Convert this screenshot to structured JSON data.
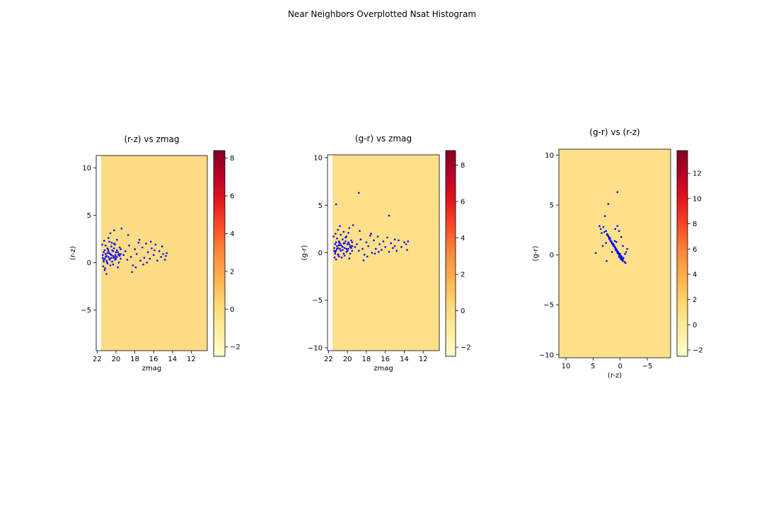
{
  "figure": {
    "suptitle": "Near Neighbors Overplotted Nsat Histogram"
  },
  "colors": {
    "background_field": "#fddc85",
    "background_field_alt": "#fee08b",
    "points": "#0000ff",
    "colormap_stops": [
      "#ffffcc",
      "#ffeda0",
      "#fed976",
      "#feb24c",
      "#fd8d3c",
      "#fc4e2a",
      "#e31a1c",
      "#bd0026",
      "#800026"
    ]
  },
  "chart_data": [
    {
      "type": "scatter",
      "title": "(r-z) vs zmag",
      "xlabel": "zmag",
      "ylabel": "(r-z)",
      "xlim": [
        22.1,
        10.3
      ],
      "ylim": [
        -9.3,
        11.3
      ],
      "x_inverted": true,
      "x_ticks": [
        "22",
        "20",
        "18",
        "16",
        "14",
        "12"
      ],
      "y_ticks": [
        "10",
        "5",
        "0",
        "−5"
      ],
      "colorbar": {
        "ticks": [
          "8",
          "6",
          "4",
          "2",
          "0",
          "−2"
        ],
        "range": [
          -2.5,
          8.4
        ]
      },
      "points": [
        [
          21.4,
          0.8
        ],
        [
          21.3,
          1.1
        ],
        [
          21.2,
          0.4
        ],
        [
          21.1,
          0.9
        ],
        [
          21.0,
          0.2
        ],
        [
          20.9,
          1.5
        ],
        [
          20.8,
          0.6
        ],
        [
          20.7,
          1.0
        ],
        [
          20.6,
          -0.3
        ],
        [
          20.5,
          0.5
        ],
        [
          20.4,
          1.3
        ],
        [
          20.3,
          0.7
        ],
        [
          20.2,
          2.0
        ],
        [
          20.1,
          0.3
        ],
        [
          20.0,
          1.1
        ],
        [
          19.9,
          0.6
        ],
        [
          19.8,
          -0.5
        ],
        [
          19.7,
          0.9
        ],
        [
          19.6,
          1.6
        ],
        [
          19.5,
          0.4
        ],
        [
          21.3,
          0.1
        ],
        [
          21.1,
          1.8
        ],
        [
          20.9,
          -0.1
        ],
        [
          20.7,
          2.2
        ],
        [
          20.5,
          1.7
        ],
        [
          20.3,
          -0.2
        ],
        [
          20.1,
          1.9
        ],
        [
          19.9,
          2.4
        ],
        [
          19.7,
          0.0
        ],
        [
          19.5,
          1.4
        ],
        [
          21.2,
          -0.8
        ],
        [
          21.0,
          -1.2
        ],
        [
          20.8,
          2.6
        ],
        [
          20.6,
          3.1
        ],
        [
          20.2,
          3.4
        ],
        [
          19.4,
          3.6
        ],
        [
          19.2,
          0.8
        ],
        [
          19.0,
          1.2
        ],
        [
          18.8,
          0.3
        ],
        [
          18.6,
          1.8
        ],
        [
          18.4,
          0.6
        ],
        [
          18.2,
          -0.3
        ],
        [
          18.0,
          1.4
        ],
        [
          17.8,
          0.9
        ],
        [
          17.6,
          2.1
        ],
        [
          17.4,
          0.2
        ],
        [
          17.2,
          1.6
        ],
        [
          17.0,
          0.5
        ],
        [
          16.8,
          2.0
        ],
        [
          16.6,
          1.1
        ],
        [
          16.4,
          0.4
        ],
        [
          16.2,
          1.5
        ],
        [
          16.0,
          0.8
        ],
        [
          15.8,
          1.9
        ],
        [
          15.6,
          0.2
        ],
        [
          15.4,
          1.2
        ],
        [
          15.2,
          0.6
        ],
        [
          15.0,
          0.9
        ],
        [
          14.8,
          0.3
        ],
        [
          14.6,
          1.0
        ],
        [
          18.7,
          2.9
        ],
        [
          18.3,
          -1.0
        ],
        [
          17.9,
          -0.5
        ],
        [
          17.5,
          2.4
        ],
        [
          17.1,
          -0.2
        ],
        [
          16.7,
          0.0
        ],
        [
          16.3,
          2.2
        ],
        [
          15.9,
          1.3
        ],
        [
          15.1,
          1.7
        ],
        [
          14.7,
          0.7
        ],
        [
          21.4,
          0.5
        ],
        [
          21.2,
          1.3
        ],
        [
          21.0,
          0.7
        ],
        [
          20.8,
          1.2
        ],
        [
          20.6,
          0.9
        ],
        [
          20.4,
          0.1
        ],
        [
          20.2,
          1.5
        ],
        [
          20.0,
          0.4
        ],
        [
          19.8,
          1.1
        ],
        [
          19.6,
          0.7
        ],
        [
          21.3,
          0.3
        ],
        [
          21.1,
          0.6
        ],
        [
          20.9,
          1.0
        ],
        [
          20.7,
          0.4
        ],
        [
          20.5,
          0.8
        ],
        [
          20.3,
          1.2
        ],
        [
          20.1,
          0.6
        ],
        [
          19.9,
          1.3
        ],
        [
          19.7,
          0.8
        ],
        [
          19.5,
          0.9
        ],
        [
          21.45,
          1.9
        ],
        [
          21.35,
          -0.4
        ],
        [
          21.25,
          2.3
        ],
        [
          21.15,
          -0.6
        ],
        [
          20.95,
          0.0
        ],
        [
          20.85,
          1.4
        ],
        [
          20.65,
          0.3
        ],
        [
          20.45,
          2.1
        ],
        [
          20.25,
          0.5
        ],
        [
          20.05,
          0.8
        ]
      ]
    },
    {
      "type": "scatter",
      "title": "(g-r) vs zmag",
      "xlabel": "zmag",
      "ylabel": "(g-r)",
      "xlim": [
        22.1,
        10.3
      ],
      "ylim": [
        -10.3,
        10.3
      ],
      "x_inverted": true,
      "x_ticks": [
        "22",
        "20",
        "18",
        "16",
        "14",
        "12"
      ],
      "y_ticks": [
        "10",
        "5",
        "0",
        "−5",
        "−10"
      ],
      "colorbar": {
        "ticks": [
          "8",
          "6",
          "4",
          "2",
          "0",
          "−2"
        ],
        "range": [
          -2.5,
          8.8
        ]
      },
      "points": [
        [
          21.4,
          0.5
        ],
        [
          21.3,
          0.9
        ],
        [
          21.2,
          0.2
        ],
        [
          21.1,
          0.7
        ],
        [
          21.0,
          -0.2
        ],
        [
          20.9,
          1.2
        ],
        [
          20.8,
          0.4
        ],
        [
          20.7,
          0.8
        ],
        [
          20.6,
          -0.5
        ],
        [
          20.5,
          0.3
        ],
        [
          20.4,
          1.0
        ],
        [
          20.3,
          0.5
        ],
        [
          20.2,
          1.6
        ],
        [
          20.1,
          0.1
        ],
        [
          20.0,
          0.9
        ],
        [
          19.9,
          0.4
        ],
        [
          19.8,
          -0.6
        ],
        [
          19.7,
          0.7
        ],
        [
          19.6,
          1.3
        ],
        [
          19.5,
          0.2
        ],
        [
          21.3,
          -0.1
        ],
        [
          21.1,
          1.5
        ],
        [
          20.9,
          -0.4
        ],
        [
          20.7,
          1.9
        ],
        [
          20.5,
          1.4
        ],
        [
          20.3,
          -0.3
        ],
        [
          20.1,
          1.7
        ],
        [
          19.9,
          2.1
        ],
        [
          19.7,
          -0.1
        ],
        [
          19.5,
          1.1
        ],
        [
          21.2,
          -0.7
        ],
        [
          21.0,
          2.4
        ],
        [
          20.8,
          2.8
        ],
        [
          20.4,
          2.2
        ],
        [
          19.8,
          2.6
        ],
        [
          21.2,
          5.1
        ],
        [
          19.4,
          2.9
        ],
        [
          19.2,
          0.6
        ],
        [
          19.0,
          0.9
        ],
        [
          18.8,
          0.2
        ],
        [
          18.6,
          1.4
        ],
        [
          18.4,
          0.4
        ],
        [
          18.2,
          -0.2
        ],
        [
          18.0,
          1.1
        ],
        [
          17.8,
          0.7
        ],
        [
          17.6,
          1.8
        ],
        [
          17.4,
          0.0
        ],
        [
          17.2,
          1.3
        ],
        [
          17.0,
          0.4
        ],
        [
          16.8,
          1.7
        ],
        [
          16.6,
          0.9
        ],
        [
          16.4,
          0.3
        ],
        [
          16.2,
          1.2
        ],
        [
          16.0,
          0.6
        ],
        [
          15.8,
          1.6
        ],
        [
          15.6,
          0.1
        ],
        [
          15.4,
          1.0
        ],
        [
          15.2,
          0.5
        ],
        [
          15.0,
          0.7
        ],
        [
          14.8,
          0.2
        ],
        [
          18.7,
          2.3
        ],
        [
          18.3,
          -0.8
        ],
        [
          17.9,
          -0.4
        ],
        [
          17.5,
          2.0
        ],
        [
          17.1,
          -0.1
        ],
        [
          16.7,
          0.1
        ],
        [
          15.6,
          3.9
        ],
        [
          18.8,
          6.3
        ],
        [
          15.0,
          1.4
        ],
        [
          14.6,
          1.3
        ],
        [
          13.8,
          0.9
        ],
        [
          13.7,
          0.3
        ],
        [
          13.6,
          1.2
        ],
        [
          14.3,
          0.6
        ],
        [
          14.0,
          1.1
        ],
        [
          21.4,
          0.2
        ],
        [
          21.2,
          1.1
        ],
        [
          21.0,
          0.5
        ],
        [
          20.8,
          1.0
        ],
        [
          20.6,
          0.7
        ],
        [
          20.4,
          -0.1
        ],
        [
          20.2,
          1.2
        ],
        [
          20.0,
          0.2
        ],
        [
          19.8,
          0.9
        ],
        [
          19.6,
          0.5
        ],
        [
          21.3,
          0.1
        ],
        [
          21.1,
          0.4
        ],
        [
          20.9,
          0.8
        ],
        [
          20.7,
          0.2
        ],
        [
          20.5,
          0.6
        ],
        [
          20.3,
          1.0
        ],
        [
          20.1,
          0.4
        ],
        [
          19.9,
          1.1
        ],
        [
          19.7,
          0.6
        ],
        [
          19.5,
          0.7
        ],
        [
          21.45,
          1.7
        ],
        [
          21.35,
          -0.5
        ],
        [
          21.25,
          2.0
        ],
        [
          20.95,
          -0.2
        ],
        [
          20.85,
          1.1
        ]
      ]
    },
    {
      "type": "scatter",
      "title": "(g-r) vs (r-z)",
      "xlabel": "(r-z)",
      "ylabel": "(g-r)",
      "xlim": [
        11.3,
        -9.3
      ],
      "ylim": [
        -10.3,
        10.6
      ],
      "x_inverted": true,
      "x_ticks": [
        "10",
        "5",
        "0",
        "−5"
      ],
      "y_ticks": [
        "10",
        "5",
        "0",
        "−5",
        "−10"
      ],
      "colorbar": {
        "ticks": [
          "12",
          "10",
          "8",
          "6",
          "4",
          "2",
          "0",
          "−2"
        ],
        "range": [
          -2.5,
          13.8
        ]
      },
      "points": [
        [
          0.8,
          0.5
        ],
        [
          1.1,
          0.9
        ],
        [
          0.4,
          0.2
        ],
        [
          0.9,
          0.7
        ],
        [
          0.2,
          -0.2
        ],
        [
          1.5,
          1.2
        ],
        [
          0.6,
          0.4
        ],
        [
          1.0,
          0.8
        ],
        [
          -0.3,
          -0.5
        ],
        [
          0.5,
          0.3
        ],
        [
          1.3,
          1.0
        ],
        [
          0.7,
          0.5
        ],
        [
          2.0,
          1.6
        ],
        [
          0.3,
          0.1
        ],
        [
          1.1,
          0.9
        ],
        [
          0.6,
          0.4
        ],
        [
          -0.5,
          -0.6
        ],
        [
          0.9,
          0.7
        ],
        [
          1.6,
          1.3
        ],
        [
          0.4,
          0.2
        ],
        [
          0.1,
          -0.1
        ],
        [
          1.8,
          1.5
        ],
        [
          -0.1,
          -0.4
        ],
        [
          2.2,
          1.9
        ],
        [
          1.7,
          1.4
        ],
        [
          -0.2,
          -0.3
        ],
        [
          1.9,
          1.7
        ],
        [
          2.4,
          2.1
        ],
        [
          0.0,
          -0.1
        ],
        [
          1.4,
          1.1
        ],
        [
          -0.8,
          -0.7
        ],
        [
          2.6,
          2.4
        ],
        [
          3.1,
          2.8
        ],
        [
          3.4,
          2.2
        ],
        [
          3.6,
          2.6
        ],
        [
          2.2,
          5.1
        ],
        [
          3.8,
          2.9
        ],
        [
          0.8,
          0.6
        ],
        [
          1.2,
          0.9
        ],
        [
          0.3,
          0.2
        ],
        [
          1.8,
          1.4
        ],
        [
          0.6,
          0.4
        ],
        [
          -0.3,
          -0.2
        ],
        [
          1.4,
          1.1
        ],
        [
          0.9,
          0.7
        ],
        [
          2.1,
          1.8
        ],
        [
          0.2,
          0.0
        ],
        [
          1.6,
          1.3
        ],
        [
          0.5,
          0.4
        ],
        [
          2.0,
          1.7
        ],
        [
          1.1,
          0.9
        ],
        [
          0.4,
          0.3
        ],
        [
          1.5,
          1.2
        ],
        [
          0.8,
          0.6
        ],
        [
          1.9,
          1.6
        ],
        [
          0.2,
          0.1
        ],
        [
          1.2,
          1.0
        ],
        [
          0.6,
          0.5
        ],
        [
          0.9,
          0.7
        ],
        [
          0.3,
          0.2
        ],
        [
          2.9,
          2.3
        ],
        [
          -1.0,
          -0.8
        ],
        [
          -0.5,
          -0.4
        ],
        [
          2.4,
          2.0
        ],
        [
          -0.2,
          -0.1
        ],
        [
          0.0,
          0.1
        ],
        [
          2.8,
          3.9
        ],
        [
          0.5,
          6.3
        ],
        [
          1.0,
          1.4
        ],
        [
          0.7,
          1.3
        ],
        [
          3.2,
          0.9
        ],
        [
          1.5,
          0.3
        ],
        [
          2.6,
          1.2
        ],
        [
          4.5,
          0.2
        ],
        [
          2.5,
          -0.6
        ],
        [
          0.5,
          0.2
        ],
        [
          1.3,
          1.1
        ],
        [
          0.7,
          0.5
        ],
        [
          1.2,
          1.0
        ],
        [
          0.9,
          0.7
        ],
        [
          0.1,
          -0.1
        ],
        [
          1.5,
          1.2
        ],
        [
          0.4,
          0.2
        ],
        [
          1.1,
          0.9
        ],
        [
          0.7,
          0.5
        ],
        [
          0.3,
          0.1
        ],
        [
          0.6,
          0.4
        ],
        [
          1.0,
          0.8
        ],
        [
          0.4,
          0.2
        ],
        [
          0.8,
          0.6
        ],
        [
          1.2,
          1.0
        ],
        [
          0.6,
          0.4
        ],
        [
          1.3,
          1.1
        ],
        [
          0.8,
          0.6
        ],
        [
          0.9,
          0.7
        ],
        [
          1.9,
          1.7
        ],
        [
          -0.4,
          -0.5
        ],
        [
          2.3,
          2.0
        ],
        [
          -0.6,
          -0.3
        ],
        [
          0.0,
          -0.2
        ],
        [
          -1.3,
          0.6
        ],
        [
          -0.9,
          0.1
        ],
        [
          0.5,
          2.9
        ],
        [
          0.2,
          2.4
        ],
        [
          -0.5,
          0.9
        ],
        [
          -1.1,
          0.3
        ],
        [
          0.9,
          2.6
        ],
        [
          -0.2,
          1.8
        ]
      ]
    }
  ]
}
